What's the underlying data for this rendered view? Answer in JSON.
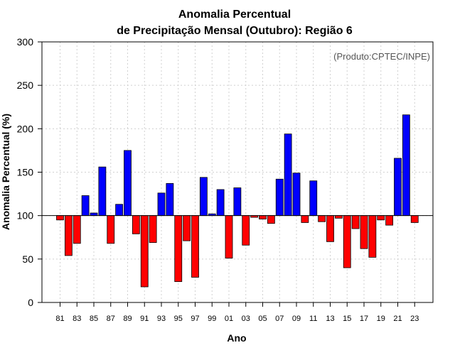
{
  "chart_data": {
    "type": "bar",
    "title": "Anomalia Percentual",
    "subtitle": "de Precipitação Mensal (Outubro): Região 6",
    "xlabel": "Ano",
    "ylabel": "Anomalia Percentual (%)",
    "credit": "(Produto:CPTEC/INPE)",
    "ylim": [
      0,
      300
    ],
    "yticks": [
      "0",
      "50",
      "100",
      "150",
      "200",
      "250",
      "300"
    ],
    "baseline": 100,
    "colors": {
      "above": "#0000ff",
      "below": "#ff0000"
    },
    "grid": true,
    "categories": [
      "81",
      "82",
      "83",
      "84",
      "85",
      "86",
      "87",
      "88",
      "89",
      "90",
      "91",
      "92",
      "93",
      "94",
      "95",
      "96",
      "97",
      "98",
      "99",
      "00",
      "01",
      "02",
      "03",
      "04",
      "05",
      "06",
      "07",
      "08",
      "09",
      "10",
      "11",
      "12",
      "13",
      "14",
      "15",
      "16",
      "17",
      "18",
      "19",
      "20",
      "21",
      "22",
      "23"
    ],
    "xtick_labels": [
      "81",
      "83",
      "85",
      "87",
      "89",
      "91",
      "93",
      "95",
      "97",
      "99",
      "01",
      "03",
      "05",
      "07",
      "09",
      "11",
      "13",
      "15",
      "17",
      "19",
      "21",
      "23"
    ],
    "values": [
      95,
      54,
      68,
      123,
      103,
      156,
      68,
      113,
      175,
      79,
      18,
      69,
      126,
      137,
      24,
      71,
      29,
      144,
      102,
      130,
      51,
      132,
      66,
      98,
      96,
      91,
      142,
      194,
      149,
      92,
      140,
      93,
      70,
      97,
      40,
      85,
      62,
      52,
      95,
      89,
      166,
      216,
      92
    ]
  }
}
